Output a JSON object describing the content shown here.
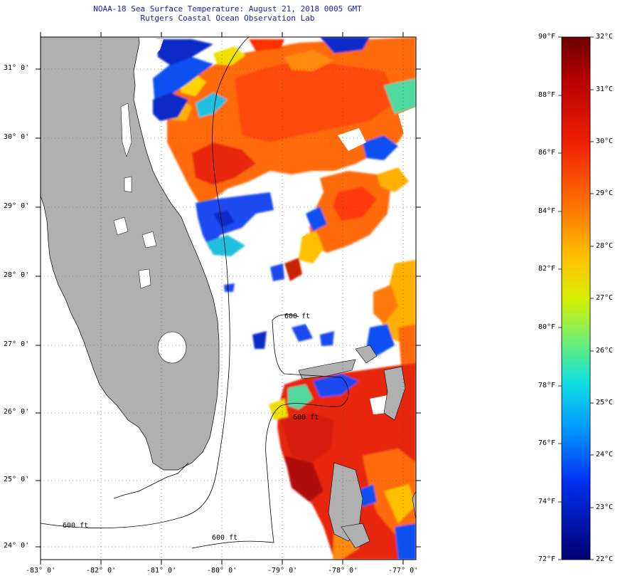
{
  "title": {
    "line1": "NOAA-18 Sea Surface Temperature:  August 21, 2018 0005 GMT",
    "line2": "Rutgers Coastal Ocean Observation Lab"
  },
  "map": {
    "lat_labels": [
      "31° 0'",
      "30° 0'",
      "29° 0'",
      "28° 0'",
      "27° 0'",
      "26° 0'",
      "25° 0'",
      "24° 0'"
    ],
    "lon_labels": [
      "-83° 0'",
      "-82° 0'",
      "-81° 0'",
      "-80° 0'",
      "-79° 0'",
      "-78° 0'",
      "-77° 0'"
    ],
    "contour_labels": [
      "600 ft",
      "600 ft",
      "600 ft",
      "600 ft"
    ],
    "land_color": "#b0b0b0",
    "cloud_color": "#ffffff"
  },
  "colorbar": {
    "fahrenheit": [
      "90°F",
      "88°F",
      "86°F",
      "84°F",
      "82°F",
      "80°F",
      "78°F",
      "76°F",
      "74°F",
      "72°F"
    ],
    "celsius": [
      "32°C",
      "31°C",
      "30°C",
      "29°C",
      "28°C",
      "27°C",
      "26°C",
      "25°C",
      "24°C",
      "23°C",
      "22°C"
    ],
    "colors": [
      "#7a0000",
      "#c80000",
      "#ff2a00",
      "#ff7a00",
      "#ffc800",
      "#e8f000",
      "#7cf06a",
      "#20e0d8",
      "#00a0ff",
      "#0040ff",
      "#0000b4",
      "#000070"
    ]
  }
}
